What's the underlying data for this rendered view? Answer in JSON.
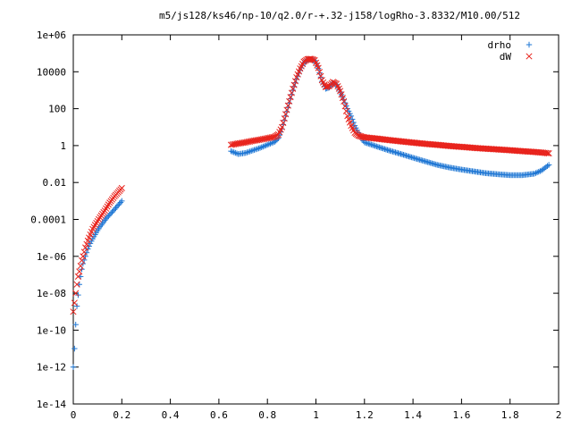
{
  "chart_data": {
    "type": "scatter",
    "title": "m5/js128/ks46/np-10/q2.0/r-+.32-j158/logRho-3.8332/M10.00/512",
    "xlabel": "",
    "ylabel": "",
    "xlim": [
      0,
      2
    ],
    "ylim": [
      1e-14,
      1000000.0
    ],
    "yscale": "log",
    "grid": false,
    "legend_position": "top-right",
    "x_ticks": [
      "0",
      "0.2",
      "0.4",
      "0.6",
      "0.8",
      "1",
      "1.2",
      "1.4",
      "1.6",
      "1.8",
      "2"
    ],
    "y_ticks": [
      "1e-14",
      "1e-12",
      "1e-10",
      "1e-08",
      "1e-06",
      "0.0001",
      "0.01",
      "1",
      "100",
      "10000",
      "1e+06"
    ],
    "series": [
      {
        "name": "drho",
        "marker": "+",
        "color": "#1f77d4",
        "x": [
          0.0,
          0.005,
          0.01,
          0.015,
          0.02,
          0.025,
          0.03,
          0.035,
          0.04,
          0.05,
          0.06,
          0.07,
          0.08,
          0.09,
          0.1,
          0.11,
          0.12,
          0.13,
          0.14,
          0.15,
          0.16,
          0.17,
          0.18,
          0.19,
          0.2,
          0.65,
          0.68,
          0.71,
          0.74,
          0.77,
          0.8,
          0.83,
          0.845,
          0.86,
          0.875,
          0.89,
          0.905,
          0.92,
          0.935,
          0.95,
          0.965,
          0.98,
          0.995,
          1.01,
          1.025,
          1.04,
          1.055,
          1.07,
          1.085,
          1.1,
          1.115,
          1.13,
          1.145,
          1.16,
          1.175,
          1.19,
          1.2,
          1.25,
          1.3,
          1.35,
          1.4,
          1.45,
          1.5,
          1.55,
          1.6,
          1.65,
          1.7,
          1.75,
          1.8,
          1.85,
          1.9,
          1.93,
          1.96
        ],
        "y": [
          1e-12,
          1e-11,
          2e-10,
          2e-09,
          8e-09,
          3e-08,
          8e-08,
          2e-07,
          4e-07,
          1e-06,
          2.5e-06,
          5e-06,
          9e-06,
          1.5e-05,
          2.5e-05,
          4e-05,
          6e-05,
          9e-05,
          0.00013,
          0.00018,
          0.00025,
          0.00035,
          0.0005,
          0.0007,
          0.001,
          0.5,
          0.35,
          0.4,
          0.55,
          0.75,
          1.1,
          1.6,
          2.5,
          8,
          40,
          200,
          1000,
          4000,
          12000,
          30000,
          45000,
          48000,
          40000,
          15000,
          3000,
          1200,
          1400,
          2500,
          2000,
          800,
          300,
          100,
          40,
          12,
          5,
          2.2,
          1.5,
          0.9,
          0.55,
          0.35,
          0.22,
          0.14,
          0.09,
          0.065,
          0.05,
          0.04,
          0.032,
          0.028,
          0.025,
          0.025,
          0.03,
          0.045,
          0.09
        ]
      },
      {
        "name": "dW",
        "marker": "x",
        "color": "#e8221b",
        "x": [
          0.0,
          0.005,
          0.01,
          0.015,
          0.02,
          0.025,
          0.03,
          0.035,
          0.04,
          0.05,
          0.06,
          0.07,
          0.08,
          0.09,
          0.1,
          0.11,
          0.12,
          0.13,
          0.14,
          0.15,
          0.16,
          0.17,
          0.18,
          0.19,
          0.2,
          0.65,
          0.68,
          0.71,
          0.74,
          0.77,
          0.8,
          0.83,
          0.845,
          0.86,
          0.875,
          0.89,
          0.905,
          0.92,
          0.935,
          0.95,
          0.965,
          0.98,
          0.995,
          1.01,
          1.025,
          1.04,
          1.055,
          1.07,
          1.085,
          1.1,
          1.115,
          1.13,
          1.145,
          1.16,
          1.175,
          1.19,
          1.2,
          1.25,
          1.3,
          1.35,
          1.4,
          1.45,
          1.5,
          1.55,
          1.6,
          1.65,
          1.7,
          1.75,
          1.8,
          1.85,
          1.9,
          1.93,
          1.96
        ],
        "y": [
          1e-09,
          3e-09,
          1e-08,
          3e-08,
          8e-08,
          1.5e-07,
          3e-07,
          6e-07,
          1e-06,
          3e-06,
          7e-06,
          1.5e-05,
          3e-05,
          5e-05,
          8e-05,
          0.00013,
          0.0002,
          0.0003,
          0.0005,
          0.0008,
          0.0012,
          0.0018,
          0.0025,
          0.0035,
          0.005,
          1.1,
          1.3,
          1.5,
          1.8,
          2.1,
          2.5,
          3.0,
          4,
          10,
          50,
          250,
          1200,
          5000,
          15000,
          35000,
          48000,
          50000,
          42000,
          16000,
          3500,
          1500,
          1700,
          2800,
          2200,
          900,
          250,
          40,
          12,
          5,
          3.5,
          3,
          2.8,
          2.4,
          2.0,
          1.7,
          1.45,
          1.25,
          1.1,
          0.95,
          0.85,
          0.75,
          0.68,
          0.62,
          0.56,
          0.5,
          0.45,
          0.42,
          0.38
        ]
      }
    ]
  }
}
